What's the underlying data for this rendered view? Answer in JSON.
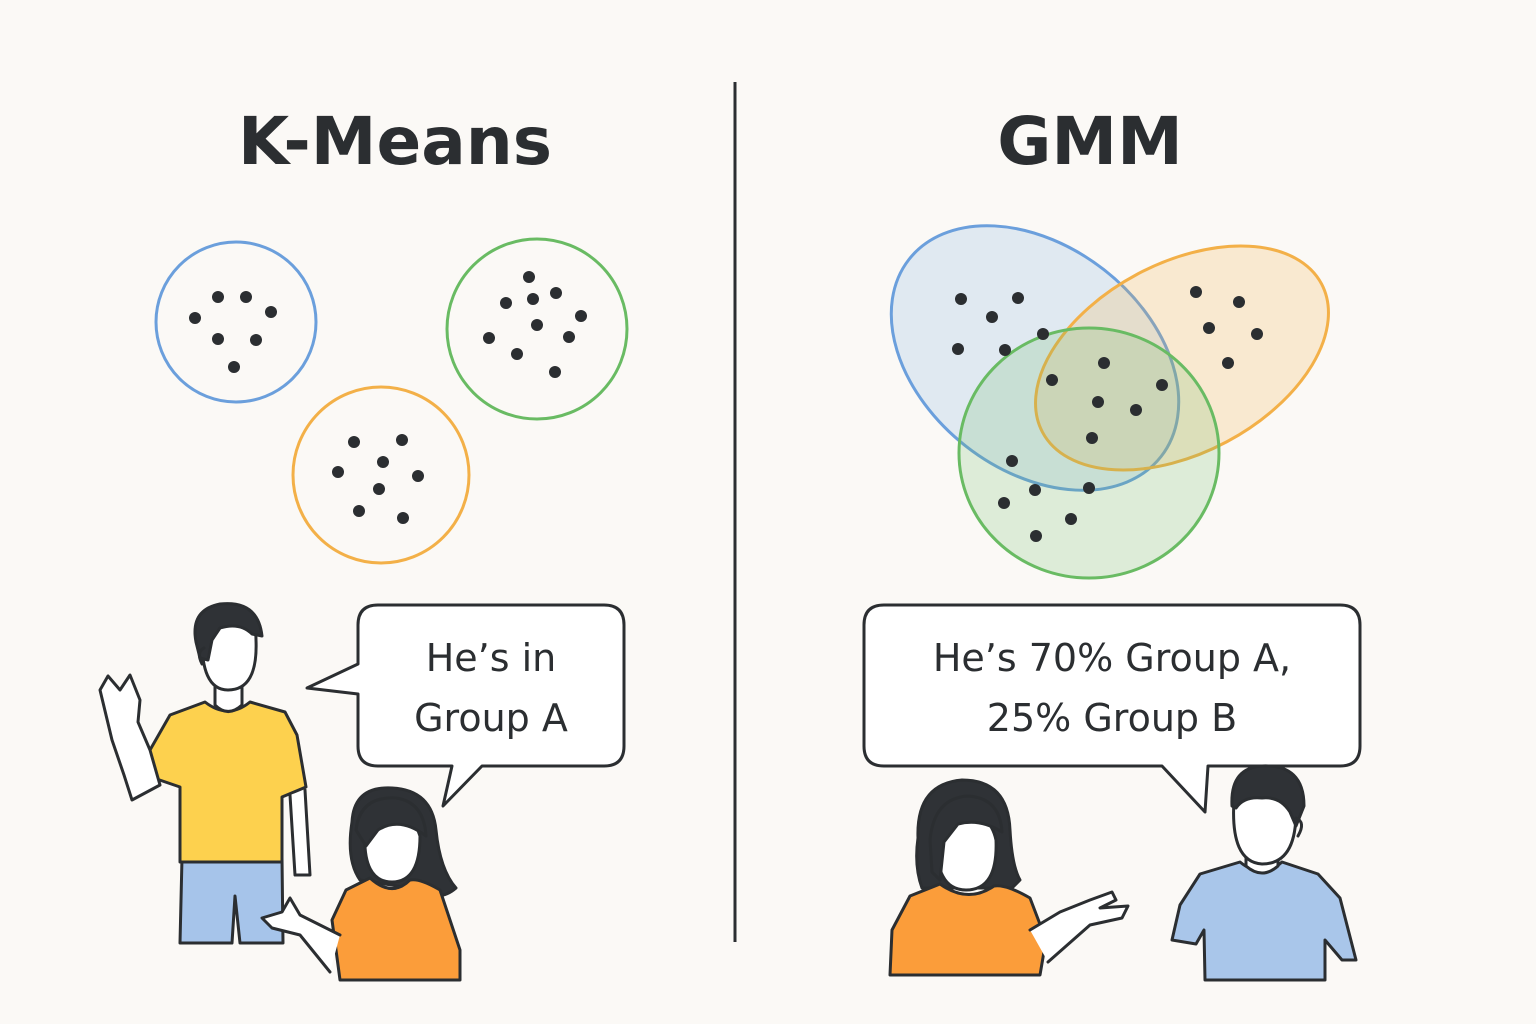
{
  "kmeans": {
    "title": "K-Means",
    "speech": [
      "He’s in",
      "Group A"
    ],
    "cluster_colors": [
      "#6b9fdc",
      "#f3b048",
      "#69bb63"
    ]
  },
  "gmm": {
    "title": "GMM",
    "speech": [
      "He’s 70% Group A,",
      "25% Group B"
    ],
    "component_colors": [
      "#6b9fdc",
      "#f3b048",
      "#69bb63"
    ]
  },
  "people": {
    "shirt_yellow": "#fdd14e",
    "shirt_orange": "#fb9d3a",
    "shirt_blue": "#a9c6ea",
    "pants_blue": "#a6c4ea",
    "hair": "#2f3236"
  }
}
